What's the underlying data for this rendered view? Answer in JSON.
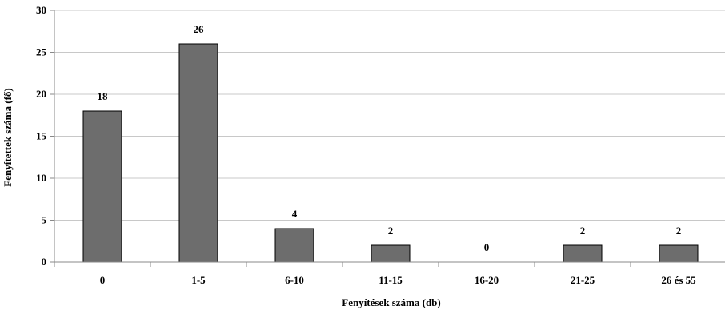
{
  "chart_data": {
    "type": "bar",
    "categories": [
      "0",
      "1-5",
      "6-10",
      "11-15",
      "16-20",
      "21-25",
      "26 és 55"
    ],
    "values": [
      18,
      26,
      4,
      2,
      0,
      2,
      2
    ],
    "data_labels": [
      "18",
      "26",
      "4",
      "2",
      "0",
      "2",
      "2"
    ],
    "title": "",
    "xlabel": "Fenyítések száma (db)",
    "ylabel": "Fenyítettek száma (fő)",
    "ylim": [
      0,
      30
    ],
    "yticks": [
      0,
      5,
      10,
      15,
      20,
      25,
      30
    ],
    "ytick_labels": [
      "0",
      "5",
      "10",
      "15",
      "20",
      "25",
      "30"
    ],
    "grid": true,
    "legend": "none",
    "colors": {
      "bar_fill": "#6d6d6d",
      "bar_stroke": "#000000",
      "grid": "#c8c8c8",
      "axis": "#888888"
    }
  }
}
